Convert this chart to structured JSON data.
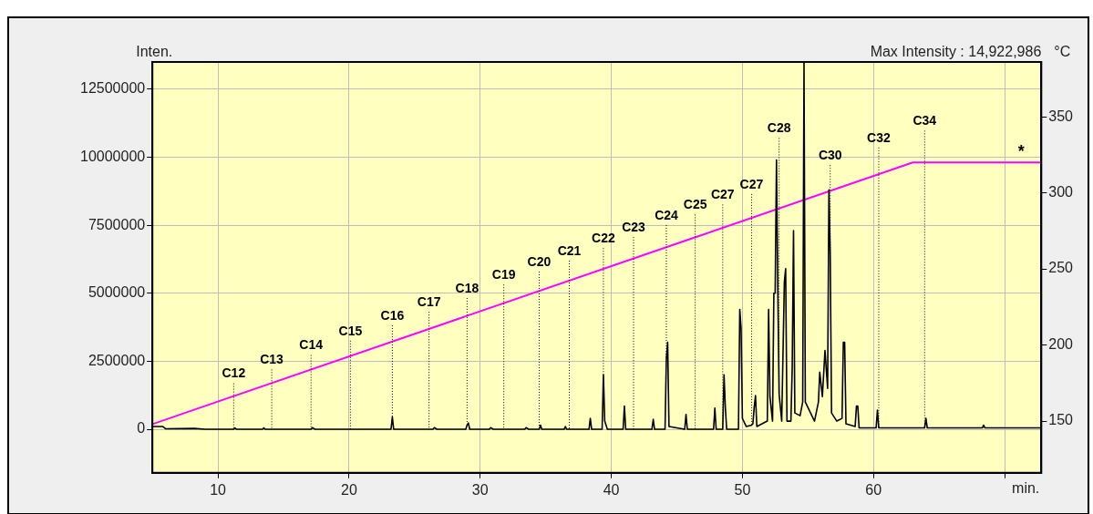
{
  "chart_data": {
    "type": "line",
    "ylabel": "Inten.",
    "y2label": "°C",
    "xlabel": "min.",
    "annotations": [
      {
        "text": "C12",
        "x": 11.2,
        "y": 0
      },
      {
        "text": "C13",
        "x": 14.1,
        "y": 0
      },
      {
        "text": "C14",
        "x": 17.1,
        "y": 0
      },
      {
        "text": "C15",
        "x": 20.1,
        "y": 0
      },
      {
        "text": "C16",
        "x": 23.3,
        "y": 450000
      },
      {
        "text": "C17",
        "x": 26.1,
        "y": 0
      },
      {
        "text": "C18",
        "x": 29.0,
        "y": 150000
      },
      {
        "text": "C19",
        "x": 31.8,
        "y": 0
      },
      {
        "text": "C20",
        "x": 34.5,
        "y": 0
      },
      {
        "text": "C21",
        "x": 36.8,
        "y": 0
      },
      {
        "text": "C22",
        "x": 39.4,
        "y": 2000000
      },
      {
        "text": "C23",
        "x": 41.7,
        "y": 0
      },
      {
        "text": "C24",
        "x": 44.2,
        "y": 2600000
      },
      {
        "text": "C25",
        "x": 46.4,
        "y": 0
      },
      {
        "text": "C27",
        "x": 48.5,
        "y": 0
      },
      {
        "text": "C27",
        "x": 50.7,
        "y": 150000
      },
      {
        "text": "C28",
        "x": 52.8,
        "y": 1300000
      },
      {
        "text": "C30",
        "x": 56.7,
        "y": 6400000
      },
      {
        "text": "C32",
        "x": 60.4,
        "y": 50000
      },
      {
        "text": "C34",
        "x": 63.9,
        "y": 50000
      },
      "*",
      "Max Intensity : 14,922,986"
    ],
    "xlim": [
      5,
      72.8
    ],
    "xticks": [
      10,
      20,
      30,
      40,
      50,
      60,
      {
        "value": 70,
        "label": null
      }
    ],
    "ylim": [
      -1600000,
      13500000
    ],
    "yticks": [
      0,
      2500000,
      5000000,
      7500000,
      10000000,
      12500000
    ],
    "y2lim": [
      116,
      386
    ],
    "y2ticks": [
      150,
      200,
      250,
      300,
      350
    ],
    "grid": true,
    "marker": "none",
    "series": [
      {
        "color": "#000000",
        "x": [
          5,
          5.8,
          6,
          8.2,
          9,
          11.2,
          11.3,
          11.4,
          13.4,
          13.5,
          13.6,
          14.1,
          17.1,
          17.2,
          17.4,
          20.1,
          23.2,
          23.3,
          23.4,
          26.1,
          26.4,
          26.5,
          26.7,
          28.9,
          29.0,
          29.1,
          29.2,
          30.7,
          30.8,
          31.0,
          31.8,
          33.4,
          33.5,
          33.7,
          34.5,
          34.6,
          34.7,
          36.4,
          36.5,
          36.6,
          36.8,
          38.3,
          38.4,
          38.5,
          39.3,
          39.4,
          39.5,
          39.7,
          40.9,
          41.0,
          41.1,
          41.7,
          43.1,
          43.2,
          43.3,
          44.1,
          44.2,
          44.3,
          44.4,
          45.6,
          45.7,
          45.8,
          46.4,
          47.8,
          47.9,
          48.0,
          48.5,
          48.6,
          48.7,
          48.8,
          49.7,
          49.8,
          49.9,
          50.0,
          50.3,
          50.7,
          50.8,
          50.9,
          51.0,
          51.1,
          51.5,
          51.9,
          52.0,
          52.1,
          52.3,
          52.4,
          52.5,
          52.6,
          52.7,
          52.8,
          53.0,
          53.2,
          53.3,
          53.4,
          53.7,
          53.8,
          53.9,
          54.0,
          54.4,
          54.6,
          54.7,
          54.8,
          55.2,
          55.5,
          55.8,
          55.9,
          56.1,
          56.3,
          56.5,
          56.6,
          56.7,
          56.8,
          57.2,
          57.6,
          57.7,
          57.8,
          57.9,
          58.6,
          58.7,
          58.8,
          58.9,
          60.2,
          60.3,
          60.4,
          63.9,
          64.0,
          64.1,
          68.3,
          68.4,
          68.5,
          72.8
        ],
        "values": [
          100000,
          100000,
          20000,
          30000,
          0,
          0,
          50000,
          0,
          0,
          50000,
          0,
          0,
          0,
          60000,
          0,
          0,
          0,
          450000,
          0,
          0,
          0,
          60000,
          0,
          0,
          150000,
          230000,
          0,
          0,
          60000,
          0,
          0,
          0,
          60000,
          0,
          0,
          150000,
          0,
          0,
          100000,
          0,
          0,
          0,
          400000,
          0,
          0,
          2000000,
          300000,
          0,
          0,
          850000,
          0,
          0,
          0,
          370000,
          0,
          0,
          2600000,
          3200000,
          100000,
          0,
          540000,
          0,
          0,
          0,
          780000,
          0,
          0,
          2000000,
          800000,
          0,
          0,
          4400000,
          3700000,
          400000,
          100000,
          150000,
          200000,
          800000,
          1240000,
          100000,
          200000,
          300000,
          4400000,
          1200000,
          300000,
          5000000,
          5000000,
          9900000,
          5200000,
          1300000,
          300000,
          5400000,
          5900000,
          300000,
          300000,
          2250000,
          7300000,
          600000,
          500000,
          1000000,
          13500000,
          1000000,
          600000,
          300000,
          1000000,
          2100000,
          1200000,
          2900000,
          1500000,
          8800000,
          6400000,
          600000,
          300000,
          400000,
          3200000,
          3200000,
          200000,
          100000,
          850000,
          850000,
          50000,
          50000,
          700000,
          50000,
          50000,
          400000,
          50000,
          50000,
          150000,
          50000,
          50000
        ]
      },
      {
        "color": "#ff00ff",
        "axis": "y2",
        "x": [
          5,
          63,
          72.8
        ],
        "values": [
          148,
          320,
          320
        ]
      }
    ]
  }
}
